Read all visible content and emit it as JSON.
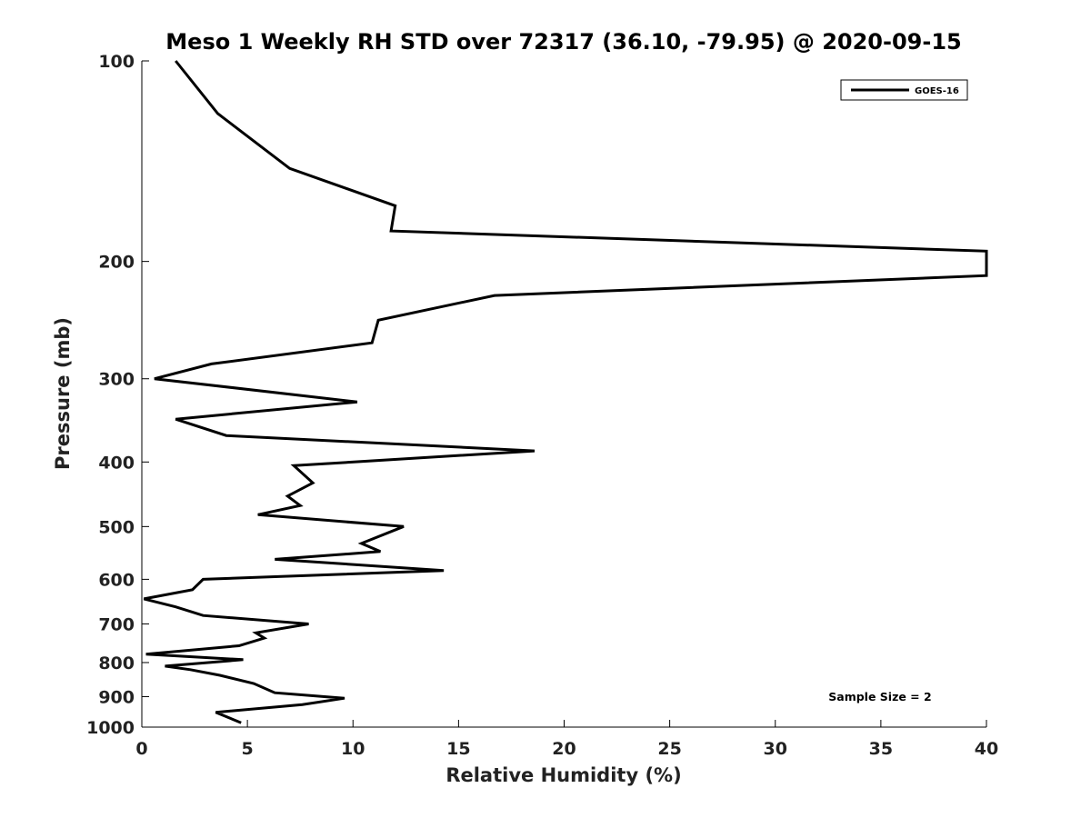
{
  "chart_data": {
    "type": "line",
    "title": "Meso 1 Weekly RH STD over 72317 (36.10, -79.95) @ 2020-09-15",
    "xlabel": "Relative Humidity (%)",
    "ylabel": "Pressure (mb)",
    "xlim": [
      0,
      40
    ],
    "ylim": [
      100,
      1000
    ],
    "yscale": "log",
    "y_reversed": true,
    "x_ticks": [
      0,
      5,
      10,
      15,
      20,
      25,
      30,
      35,
      40
    ],
    "y_ticks": [
      100,
      200,
      300,
      400,
      500,
      600,
      700,
      800,
      900,
      1000
    ],
    "grid": false,
    "legend_position": "top-right",
    "annotation": "Sample Size = 2",
    "series": [
      {
        "name": "GOES-16",
        "color": "#000000",
        "points": [
          [
            4.7,
            985
          ],
          [
            3.5,
            950
          ],
          [
            7.6,
            925
          ],
          [
            9.6,
            905
          ],
          [
            6.3,
            888
          ],
          [
            5.3,
            860
          ],
          [
            3.7,
            836
          ],
          [
            2.3,
            820
          ],
          [
            1.1,
            810
          ],
          [
            4.8,
            792
          ],
          [
            0.2,
            777
          ],
          [
            4.6,
            755
          ],
          [
            5.8,
            735
          ],
          [
            5.4,
            722
          ],
          [
            7.9,
            700
          ],
          [
            2.9,
            680
          ],
          [
            1.6,
            660
          ],
          [
            0.1,
            642
          ],
          [
            2.4,
            622
          ],
          [
            2.9,
            600
          ],
          [
            14.3,
            582
          ],
          [
            6.3,
            560
          ],
          [
            11.3,
            545
          ],
          [
            10.4,
            530
          ],
          [
            12.4,
            500
          ],
          [
            5.5,
            480
          ],
          [
            7.5,
            465
          ],
          [
            6.9,
            450
          ],
          [
            8.1,
            430
          ],
          [
            7.2,
            405
          ],
          [
            18.6,
            385
          ],
          [
            4.0,
            365
          ],
          [
            1.6,
            345
          ],
          [
            10.2,
            325
          ],
          [
            0.6,
            300
          ],
          [
            3.3,
            285
          ],
          [
            10.9,
            265
          ],
          [
            11.2,
            245
          ],
          [
            16.7,
            225
          ],
          [
            40.0,
            210
          ],
          [
            40.0,
            193
          ],
          [
            11.8,
            180
          ],
          [
            12.0,
            165
          ],
          [
            7.0,
            145
          ],
          [
            3.6,
            120
          ],
          [
            1.6,
            100
          ]
        ]
      }
    ]
  }
}
